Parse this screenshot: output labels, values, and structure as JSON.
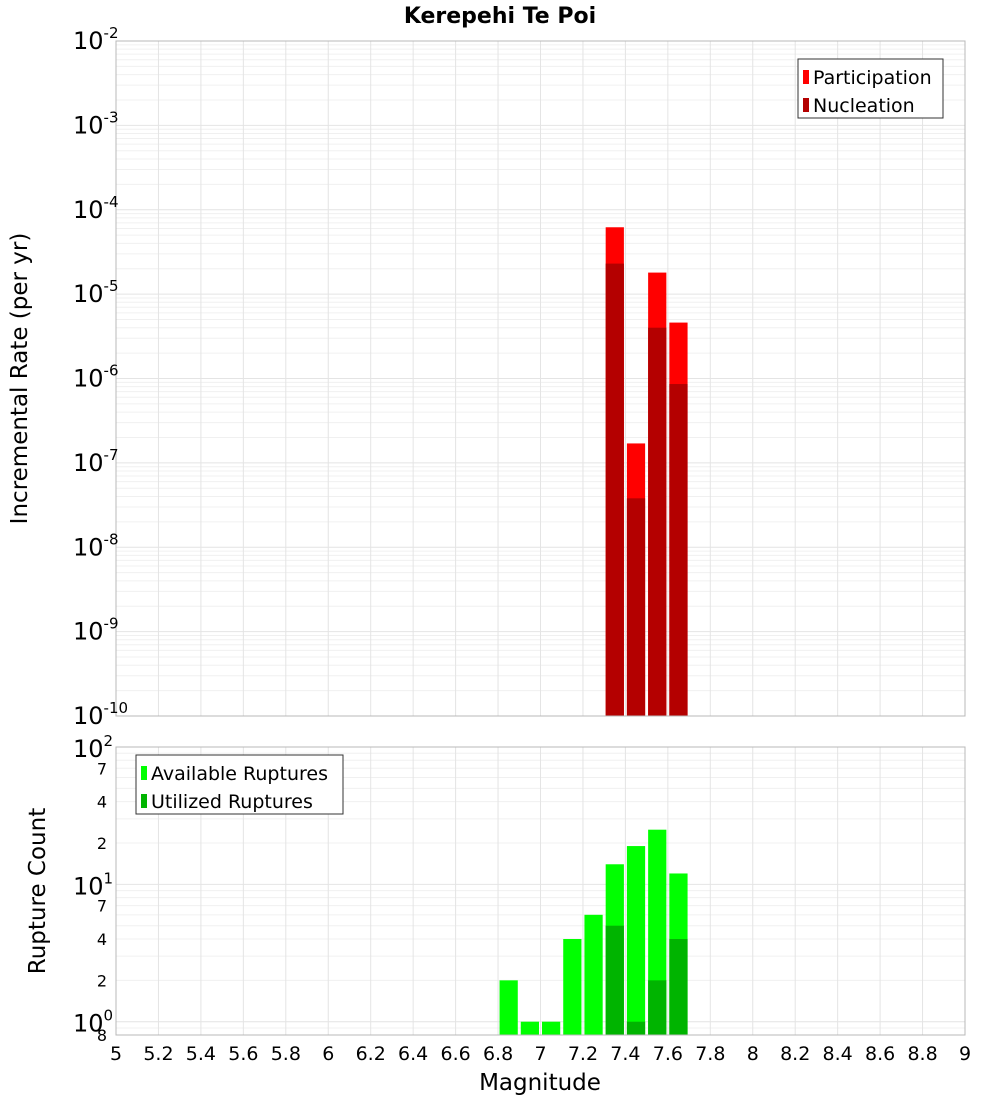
{
  "chart_data": [
    {
      "type": "bar",
      "title": "Kerepehi Te Poi",
      "xlabel": "Magnitude",
      "ylabel": "Incremental Rate (per yr)",
      "yscale": "log",
      "ylim": [
        1e-10,
        0.01
      ],
      "xlim": [
        5,
        9
      ],
      "bin_width": 0.1,
      "y_ticks": [
        {
          "base": "10",
          "exp": "-10",
          "value": 1e-10
        },
        {
          "base": "10",
          "exp": "-9",
          "value": 1e-09
        },
        {
          "base": "10",
          "exp": "-8",
          "value": 1e-08
        },
        {
          "base": "10",
          "exp": "-7",
          "value": 1e-07
        },
        {
          "base": "10",
          "exp": "-6",
          "value": 1e-06
        },
        {
          "base": "10",
          "exp": "-5",
          "value": 1e-05
        },
        {
          "base": "10",
          "exp": "-4",
          "value": 0.0001
        },
        {
          "base": "10",
          "exp": "-3",
          "value": 0.001
        },
        {
          "base": "10",
          "exp": "-2",
          "value": 0.01
        }
      ],
      "legend": {
        "position": "top-right",
        "entries": [
          "Participation",
          "Nucleation"
        ]
      },
      "series": [
        {
          "name": "Participation",
          "color": "#ff0000",
          "x": [
            7.35,
            7.45,
            7.55,
            7.65
          ],
          "values": [
            6.2e-05,
            1.7e-07,
            1.8e-05,
            4.6e-06
          ]
        },
        {
          "name": "Nucleation",
          "color": "#b40000",
          "x": [
            7.35,
            7.45,
            7.55,
            7.65
          ],
          "values": [
            2.3e-05,
            3.8e-08,
            4e-06,
            8.6e-07
          ]
        }
      ]
    },
    {
      "type": "bar",
      "xlabel": "Magnitude",
      "ylabel": "Rupture Count",
      "yscale": "log",
      "ylim": [
        0.8,
        100
      ],
      "xlim": [
        5,
        9
      ],
      "bin_width": 0.1,
      "x_ticks": [
        "5",
        "5.2",
        "5.4",
        "5.6",
        "5.8",
        "6",
        "6.2",
        "6.4",
        "6.6",
        "6.8",
        "7",
        "7.2",
        "7.4",
        "7.6",
        "7.8",
        "8",
        "8.2",
        "8.4",
        "8.6",
        "8.8",
        "9"
      ],
      "y_ticks": [
        {
          "base": "10",
          "exp": "0",
          "value": 1
        },
        {
          "base": "10",
          "exp": "1",
          "value": 10
        },
        {
          "base": "10",
          "exp": "2",
          "value": 100
        }
      ],
      "y_minor_labels": [
        {
          "label": "8",
          "value": 0.8
        },
        {
          "label": "2",
          "value": 2
        },
        {
          "label": "4",
          "value": 4
        },
        {
          "label": "7",
          "value": 7
        },
        {
          "label": "2",
          "value": 20
        },
        {
          "label": "4",
          "value": 40
        },
        {
          "label": "7",
          "value": 70
        }
      ],
      "legend": {
        "position": "top-left",
        "entries": [
          "Available Ruptures",
          "Utilized Ruptures"
        ]
      },
      "series": [
        {
          "name": "Available Ruptures",
          "color": "#00ff00",
          "x": [
            6.85,
            6.95,
            7.05,
            7.15,
            7.25,
            7.35,
            7.45,
            7.55,
            7.65
          ],
          "values": [
            2,
            1,
            1,
            4,
            6,
            14,
            19,
            25,
            12
          ]
        },
        {
          "name": "Utilized Ruptures",
          "color": "#00b400",
          "x": [
            7.35,
            7.45,
            7.55,
            7.65
          ],
          "values": [
            5,
            1,
            2,
            4
          ]
        }
      ]
    }
  ]
}
